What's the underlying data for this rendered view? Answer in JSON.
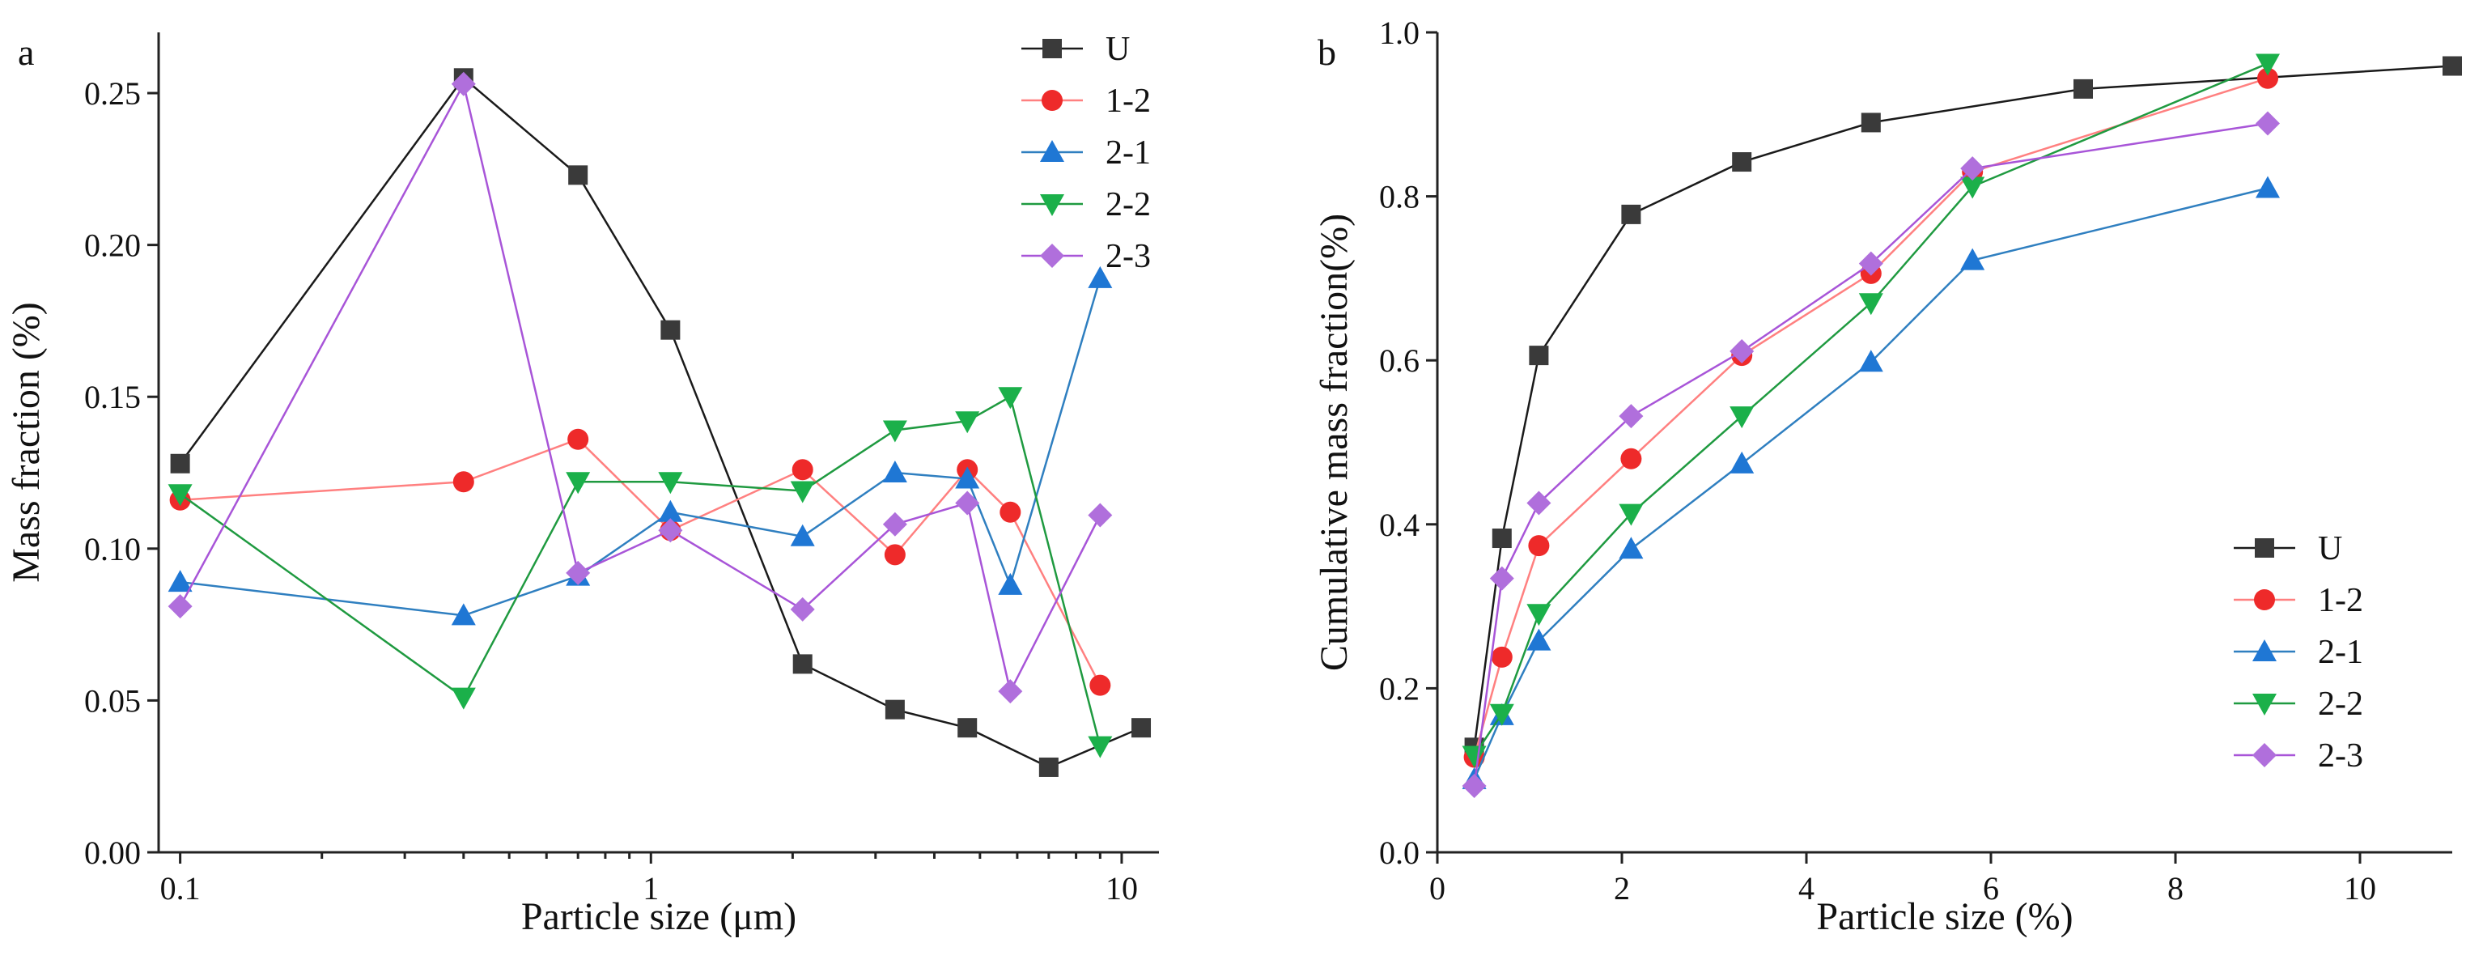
{
  "figure": {
    "marker_colors": {
      "U": "#3a3a3a",
      "1-2": "#ee2a2a",
      "2-1": "#1f77d4",
      "2-2": "#1bb04a",
      "2-3": "#b06fdc"
    },
    "line_colors": {
      "U": "#1a1a1a",
      "1-2": "#ff8080",
      "2-1": "#2f7fc0",
      "2-2": "#1f9a40",
      "2-3": "#a855d8"
    }
  },
  "chart_data": [
    {
      "panel_label": "a",
      "type": "line",
      "xscale": "log",
      "title": "",
      "xlabel": "Particle size (μm)",
      "ylabel": "Mass fraction (%)",
      "xlim": [
        0.09,
        12
      ],
      "ylim": [
        0.0,
        0.27
      ],
      "xticks": [
        0.1,
        1,
        10
      ],
      "xtick_labels": [
        "0.1",
        "1",
        "10"
      ],
      "yticks": [
        0.0,
        0.05,
        0.1,
        0.15,
        0.2,
        0.25
      ],
      "ytick_labels": [
        "0.00",
        "0.05",
        "0.10",
        "0.15",
        "0.20",
        "0.25"
      ],
      "legend_position": "top-right",
      "series": [
        {
          "name": "U",
          "marker": "square",
          "x": [
            0.1,
            0.4,
            0.7,
            1.1,
            2.1,
            3.3,
            4.7,
            7.0,
            11.0
          ],
          "y": [
            0.128,
            0.255,
            0.223,
            0.172,
            0.062,
            0.047,
            0.041,
            0.028,
            0.041
          ]
        },
        {
          "name": "1-2",
          "marker": "circle",
          "x": [
            0.1,
            0.4,
            0.7,
            1.1,
            2.1,
            3.3,
            4.7,
            5.8,
            9.0
          ],
          "y": [
            0.116,
            0.122,
            0.136,
            0.106,
            0.126,
            0.098,
            0.126,
            0.112,
            0.055
          ]
        },
        {
          "name": "2-1",
          "marker": "triangle-up",
          "x": [
            0.1,
            0.4,
            0.7,
            1.1,
            2.1,
            3.3,
            4.7,
            5.8,
            9.0
          ],
          "y": [
            0.089,
            0.078,
            0.091,
            0.112,
            0.104,
            0.125,
            0.123,
            0.088,
            0.189
          ]
        },
        {
          "name": "2-2",
          "marker": "triangle-down",
          "x": [
            0.1,
            0.4,
            0.7,
            1.1,
            2.1,
            3.3,
            4.7,
            5.8,
            9.0
          ],
          "y": [
            0.118,
            0.051,
            0.122,
            0.122,
            0.119,
            0.139,
            0.142,
            0.15,
            0.035
          ]
        },
        {
          "name": "2-3",
          "marker": "diamond",
          "x": [
            0.1,
            0.4,
            0.7,
            1.1,
            2.1,
            3.3,
            4.7,
            5.8,
            9.0
          ],
          "y": [
            0.081,
            0.253,
            0.092,
            0.106,
            0.08,
            0.108,
            0.115,
            0.053,
            0.111
          ]
        }
      ]
    },
    {
      "panel_label": "b",
      "type": "line",
      "xscale": "linear",
      "title": "",
      "xlabel": "Particle size (%)",
      "ylabel": "Cumulative mass fraction(%)",
      "xlim": [
        0,
        11
      ],
      "ylim": [
        0.0,
        1.0
      ],
      "xticks": [
        0,
        2,
        4,
        6,
        8,
        10
      ],
      "xtick_labels": [
        "0",
        "2",
        "4",
        "6",
        "8",
        "10"
      ],
      "yticks": [
        0.0,
        0.2,
        0.4,
        0.6,
        0.8,
        1.0
      ],
      "ytick_labels": [
        "0.0",
        "0.2",
        "0.4",
        "0.6",
        "0.8",
        "1.0"
      ],
      "legend_position": "bottom-right",
      "series": [
        {
          "name": "U",
          "marker": "square",
          "x": [
            0.4,
            0.7,
            1.1,
            2.1,
            3.3,
            4.7,
            7.0,
            11.0
          ],
          "y": [
            0.128,
            0.383,
            0.606,
            0.778,
            0.842,
            0.89,
            0.931,
            0.959
          ]
        },
        {
          "name": "1-2",
          "marker": "circle",
          "x": [
            0.4,
            0.7,
            1.1,
            2.1,
            3.3,
            4.7,
            5.8,
            9.0
          ],
          "y": [
            0.116,
            0.238,
            0.374,
            0.48,
            0.606,
            0.706,
            0.83,
            0.944
          ]
        },
        {
          "name": "2-1",
          "marker": "triangle-up",
          "x": [
            0.4,
            0.7,
            1.1,
            2.1,
            3.3,
            4.7,
            5.8,
            9.0
          ],
          "y": [
            0.089,
            0.167,
            0.258,
            0.37,
            0.474,
            0.598,
            0.722,
            0.81
          ]
        },
        {
          "name": "2-2",
          "marker": "triangle-down",
          "x": [
            0.4,
            0.7,
            1.1,
            2.1,
            3.3,
            4.7,
            5.8,
            9.0
          ],
          "y": [
            0.118,
            0.169,
            0.291,
            0.413,
            0.532,
            0.67,
            0.812,
            0.962
          ]
        },
        {
          "name": "2-3",
          "marker": "diamond",
          "x": [
            0.4,
            0.7,
            1.1,
            2.1,
            3.3,
            4.7,
            5.8,
            9.0
          ],
          "y": [
            0.081,
            0.334,
            0.426,
            0.532,
            0.611,
            0.718,
            0.834,
            0.889
          ]
        }
      ]
    }
  ]
}
